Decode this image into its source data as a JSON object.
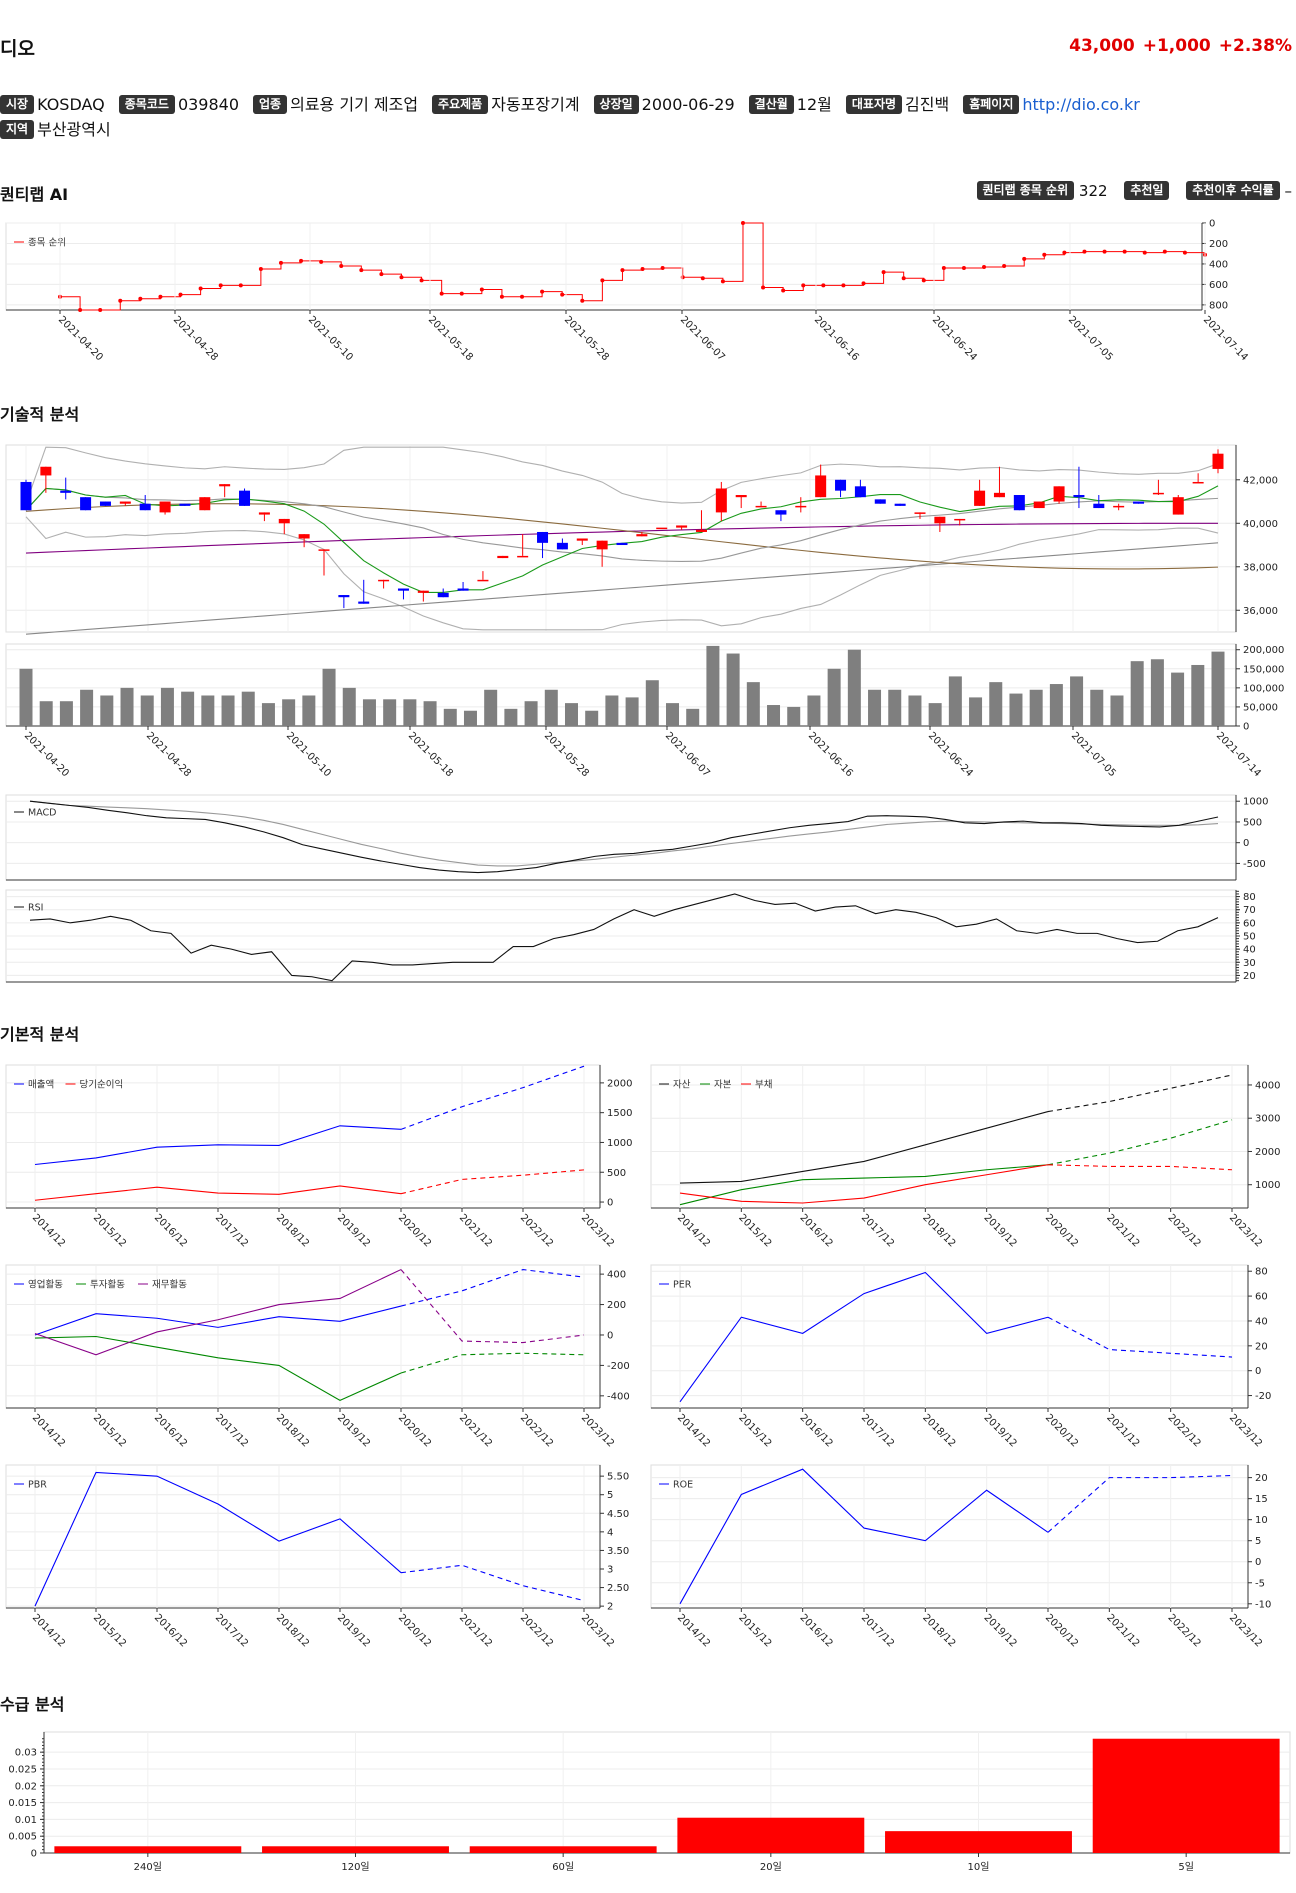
{
  "stock": {
    "name": "디오",
    "price": "43,000",
    "change": "+1,000",
    "change_pct": "+2.38%"
  },
  "info": [
    {
      "label": "시장",
      "value": "KOSDAQ"
    },
    {
      "label": "종목코드",
      "value": "039840"
    },
    {
      "label": "업종",
      "value": "의료용 기기 제조업"
    },
    {
      "label": "주요제품",
      "value": "자동포장기계"
    },
    {
      "label": "상장일",
      "value": "2000-06-29"
    },
    {
      "label": "결산월",
      "value": "12월"
    },
    {
      "label": "대표자명",
      "value": "김진백"
    },
    {
      "label": "홈페이지",
      "value": "http://dio.co.kr",
      "link": true
    },
    {
      "label": "지역",
      "value": "부산광역시"
    }
  ],
  "sections": {
    "quant": "퀀티랩 AI",
    "technical": "기술적 분석",
    "fundamental": "기본적 분석",
    "supply": "수급 분석"
  },
  "quant_meta": {
    "rank_label": "퀀티랩 종목 순위",
    "rank_value": "322",
    "rec_date_label": "추천일",
    "rec_date_value": "",
    "return_label": "추천이후 수익률",
    "return_value": "–"
  },
  "colors": {
    "up": "#ff0000",
    "down": "#0000ff",
    "price_up": "#e00000"
  },
  "chart_data": [
    {
      "id": "rank",
      "type": "line",
      "legend": [
        "종목 순위"
      ],
      "x_ticks": [
        "2021-04-20",
        "2021-04-28",
        "2021-05-10",
        "2021-05-18",
        "2021-05-28",
        "2021-06-07",
        "2021-06-16",
        "2021-06-24",
        "2021-07-05",
        "2021-07-14"
      ],
      "y_ticks": [
        0,
        200,
        400,
        600,
        800
      ],
      "ylim": [
        0,
        850
      ],
      "inverted": true,
      "values": [
        720,
        850,
        850,
        760,
        740,
        720,
        700,
        640,
        610,
        610,
        450,
        390,
        370,
        380,
        420,
        460,
        500,
        530,
        560,
        690,
        690,
        650,
        720,
        720,
        670,
        700,
        760,
        560,
        460,
        450,
        440,
        530,
        540,
        570,
        0,
        630,
        660,
        610,
        610,
        610,
        590,
        480,
        540,
        560,
        440,
        440,
        430,
        420,
        350,
        310,
        290,
        280,
        280,
        280,
        290,
        280,
        290,
        310
      ]
    },
    {
      "id": "price",
      "type": "candlestick",
      "y_ticks": [
        36000,
        38000,
        40000,
        42000
      ],
      "ylim": [
        35000,
        43600
      ],
      "ohlc": [
        [
          41900,
          40600,
          42000,
          40800
        ],
        [
          42200,
          42600,
          41700,
          41400
        ],
        [
          41500,
          41400,
          42100,
          41100
        ],
        [
          41200,
          40600,
          40900,
          41100
        ],
        [
          41000,
          40800,
          40800,
          41000
        ],
        [
          40900,
          41000,
          40500,
          40800
        ],
        [
          40900,
          40600,
          41300,
          40900
        ],
        [
          40500,
          41000,
          40400,
          40400
        ],
        [
          40900,
          40800,
          40700,
          41100
        ],
        [
          40600,
          41200,
          40100,
          41000
        ],
        [
          41700,
          41800,
          41300,
          41200
        ],
        [
          41500,
          40800,
          41600,
          41300
        ],
        [
          40400,
          40500,
          40200,
          40100
        ],
        [
          40000,
          40200,
          39400,
          39500
        ],
        [
          39300,
          39500,
          38900,
          38900
        ],
        [
          38800,
          38800,
          37500,
          37600
        ],
        [
          36700,
          36600,
          36200,
          36100
        ],
        [
          36400,
          36300,
          37400,
          37400
        ],
        [
          37400,
          37400,
          37000,
          37000
        ],
        [
          37000,
          36900,
          36600,
          36500
        ],
        [
          36800,
          36900,
          36600,
          36400
        ],
        [
          36800,
          36600,
          37000,
          37100
        ],
        [
          37000,
          36900,
          37300,
          37200
        ],
        [
          37400,
          37400,
          37800,
          38000
        ],
        [
          38400,
          38500,
          38300,
          38500
        ],
        [
          38500,
          38500,
          39500,
          39700
        ],
        [
          39600,
          39100,
          38800,
          38400
        ],
        [
          39100,
          38800,
          39300,
          39300
        ],
        [
          39200,
          39300,
          38900,
          39000
        ],
        [
          38800,
          39200,
          38800,
          38000
        ],
        [
          39100,
          39000,
          38900,
          39200
        ],
        [
          39400,
          39500,
          39600,
          39500
        ],
        [
          39800,
          39800,
          39800,
          39800
        ],
        [
          39800,
          39900,
          39700,
          39700
        ],
        [
          39600,
          39700,
          40600,
          39600
        ],
        [
          40500,
          41600,
          41900,
          40100
        ],
        [
          41200,
          41300,
          41300,
          40700
        ],
        [
          40800,
          40800,
          41000,
          40800
        ],
        [
          40600,
          40400,
          40400,
          40100
        ],
        [
          40800,
          40800,
          41200,
          40500
        ],
        [
          41200,
          42200,
          42700,
          41400
        ],
        [
          42000,
          41500,
          41700,
          41200
        ],
        [
          41700,
          41200,
          42000,
          41200
        ],
        [
          41100,
          40900,
          40800,
          40900
        ],
        [
          40900,
          40800,
          40700,
          40900
        ],
        [
          40500,
          40500,
          40200,
          40200
        ],
        [
          40000,
          40300,
          39700,
          39600
        ],
        [
          40200,
          40200,
          39900,
          39900
        ],
        [
          40800,
          41500,
          42000,
          41300
        ],
        [
          41200,
          41400,
          42600,
          41500
        ],
        [
          41300,
          40600,
          41100,
          40600
        ],
        [
          40700,
          41000,
          41000,
          40900
        ],
        [
          41000,
          41700,
          41100,
          40900
        ],
        [
          41300,
          41200,
          42600,
          40700
        ],
        [
          40900,
          40700,
          41300,
          40800
        ],
        [
          40800,
          40800,
          40900,
          40600
        ],
        [
          41000,
          40900,
          40900,
          41000
        ],
        [
          41400,
          41400,
          42000,
          41300
        ],
        [
          40400,
          41200,
          41300,
          41200
        ],
        [
          41900,
          41900,
          42300,
          41900
        ],
        [
          42500,
          43200,
          43400,
          42300
        ]
      ],
      "ma_lines": [
        "MA5",
        "MA20",
        "MA60",
        "MA120",
        "BB-upper",
        "BB-lower"
      ]
    },
    {
      "id": "volume",
      "type": "bar",
      "y_ticks": [
        0,
        50000,
        100000,
        150000,
        200000
      ],
      "ylim": [
        0,
        215000
      ],
      "x_ticks": [
        "2021-04-20",
        "2021-04-28",
        "2021-05-10",
        "2021-05-18",
        "2021-05-28",
        "2021-06-07",
        "2021-06-16",
        "2021-06-24",
        "2021-07-05",
        "2021-07-14"
      ],
      "values": [
        150000,
        65000,
        65000,
        95000,
        80000,
        100000,
        80000,
        100000,
        90000,
        80000,
        80000,
        90000,
        60000,
        70000,
        80000,
        150000,
        100000,
        70000,
        70000,
        70000,
        65000,
        45000,
        40000,
        95000,
        45000,
        65000,
        95000,
        60000,
        40000,
        80000,
        75000,
        120000,
        60000,
        45000,
        210000,
        190000,
        115000,
        55000,
        50000,
        80000,
        150000,
        200000,
        95000,
        95000,
        80000,
        60000,
        130000,
        75000,
        115000,
        85000,
        95000,
        110000,
        130000,
        95000,
        80000,
        170000,
        175000,
        140000,
        160000,
        195000
      ]
    },
    {
      "id": "macd",
      "type": "line",
      "legend": [
        "MACD"
      ],
      "y_ticks": [
        -500,
        0,
        500,
        1000
      ],
      "ylim": [
        -900,
        1150
      ],
      "values": [
        1000,
        950,
        900,
        850,
        780,
        720,
        650,
        600,
        580,
        560,
        480,
        380,
        260,
        120,
        -50,
        -150,
        -250,
        -350,
        -440,
        -520,
        -600,
        -660,
        -700,
        -720,
        -700,
        -650,
        -600,
        -500,
        -420,
        -330,
        -280,
        -260,
        -200,
        -160,
        -80,
        0,
        120,
        200,
        280,
        360,
        420,
        460,
        510,
        640,
        650,
        640,
        620,
        560,
        480,
        460,
        500,
        520,
        480,
        480,
        460,
        420,
        400,
        390,
        380,
        420,
        520,
        620
      ],
      "signal": [
        1000,
        950,
        900,
        880,
        860,
        840,
        820,
        790,
        760,
        720,
        680,
        620,
        540,
        440,
        320,
        200,
        80,
        -40,
        -140,
        -250,
        -340,
        -420,
        -480,
        -540,
        -560,
        -560,
        -520,
        -480,
        -440,
        -400,
        -350,
        -300,
        -260,
        -200,
        -150,
        -80,
        -20,
        40,
        100,
        160,
        210,
        260,
        320,
        380,
        440,
        470,
        500,
        520,
        510,
        500,
        490,
        480,
        470,
        460,
        450,
        440,
        430,
        420,
        420,
        420,
        430,
        460
      ]
    },
    {
      "id": "rsi",
      "type": "line",
      "legend": [
        "RSI"
      ],
      "y_ticks": [
        20,
        30,
        40,
        50,
        60,
        70,
        80
      ],
      "ylim": [
        15,
        85
      ],
      "values": [
        62,
        63,
        60,
        62,
        65,
        62,
        54,
        52,
        37,
        43,
        40,
        36,
        38,
        20,
        19,
        16,
        31,
        30,
        28,
        28,
        29,
        30,
        30,
        30,
        42,
        42,
        48,
        51,
        55,
        63,
        70,
        65,
        70,
        74,
        78,
        82,
        77,
        74,
        75,
        69,
        72,
        73,
        67,
        70,
        68,
        64,
        57,
        59,
        63,
        54,
        52,
        55,
        52,
        52,
        48,
        45,
        46,
        54,
        57,
        64
      ]
    },
    {
      "id": "sales_income",
      "type": "line",
      "legend": [
        "매출액",
        "당기순이익"
      ],
      "colors": [
        "#0000ff",
        "#ff0000"
      ],
      "x_ticks": [
        "2014/12",
        "2015/12",
        "2016/12",
        "2017/12",
        "2018/12",
        "2019/12",
        "2020/12",
        "2021/12",
        "2022/12",
        "2023/12"
      ],
      "y_ticks": [
        0,
        500,
        1000,
        1500,
        2000
      ],
      "ylim": [
        -100,
        2300
      ],
      "forecast_from": 6,
      "series": [
        {
          "name": "매출액",
          "values": [
            630,
            740,
            920,
            960,
            950,
            1280,
            1220,
            1600,
            1920,
            2280
          ]
        },
        {
          "name": "당기순이익",
          "values": [
            30,
            140,
            250,
            150,
            130,
            270,
            140,
            380,
            450,
            540
          ]
        }
      ]
    },
    {
      "id": "balance",
      "type": "line",
      "legend": [
        "자산",
        "자본",
        "부채"
      ],
      "colors": [
        "#111111",
        "#008800",
        "#ff0000"
      ],
      "x_ticks": [
        "2014/12",
        "2015/12",
        "2016/12",
        "2017/12",
        "2018/12",
        "2019/12",
        "2020/12",
        "2021/12",
        "2022/12",
        "2023/12"
      ],
      "y_ticks": [
        1000,
        2000,
        3000,
        4000
      ],
      "ylim": [
        300,
        4600
      ],
      "forecast_from": 6,
      "series": [
        {
          "name": "자산",
          "values": [
            1050,
            1100,
            1400,
            1700,
            2200,
            2700,
            3200,
            3500,
            3900,
            4300
          ]
        },
        {
          "name": "자본",
          "values": [
            400,
            850,
            1150,
            1200,
            1250,
            1450,
            1600,
            1950,
            2400,
            2950
          ]
        },
        {
          "name": "부채",
          "values": [
            750,
            500,
            450,
            600,
            1000,
            1300,
            1600,
            1550,
            1550,
            1450
          ]
        }
      ]
    },
    {
      "id": "cashflow",
      "type": "line",
      "legend": [
        "영업활동",
        "투자활동",
        "재무활동"
      ],
      "colors": [
        "#0000ff",
        "#008800",
        "#880088"
      ],
      "x_ticks": [
        "2014/12",
        "2015/12",
        "2016/12",
        "2017/12",
        "2018/12",
        "2019/12",
        "2020/12",
        "2021/12",
        "2022/12",
        "2023/12"
      ],
      "y_ticks": [
        -400,
        -200,
        0,
        200,
        400
      ],
      "ylim": [
        -480,
        460
      ],
      "forecast_from": 6,
      "series": [
        {
          "name": "영업활동",
          "values": [
            0,
            140,
            110,
            50,
            120,
            90,
            190,
            290,
            430,
            380
          ]
        },
        {
          "name": "투자활동",
          "values": [
            -20,
            -10,
            -80,
            -150,
            -200,
            -430,
            -250,
            -130,
            -120,
            -130
          ]
        },
        {
          "name": "재무활동",
          "values": [
            10,
            -130,
            20,
            100,
            200,
            240,
            430,
            -40,
            -50,
            0
          ]
        }
      ]
    },
    {
      "id": "per",
      "type": "line",
      "legend": [
        "PER"
      ],
      "colors": [
        "#0000ff"
      ],
      "x_ticks": [
        "2014/12",
        "2015/12",
        "2016/12",
        "2017/12",
        "2018/12",
        "2019/12",
        "2020/12",
        "2021/12",
        "2022/12",
        "2023/12"
      ],
      "y_ticks": [
        -20,
        0,
        20,
        40,
        60,
        80
      ],
      "ylim": [
        -30,
        85
      ],
      "forecast_from": 6,
      "series": [
        {
          "name": "PER",
          "values": [
            -25,
            43,
            30,
            62,
            79,
            30,
            43,
            17,
            14,
            11
          ]
        }
      ]
    },
    {
      "id": "pbr",
      "type": "line",
      "legend": [
        "PBR"
      ],
      "colors": [
        "#0000ff"
      ],
      "x_ticks": [
        "2014/12",
        "2015/12",
        "2016/12",
        "2017/12",
        "2018/12",
        "2019/12",
        "2020/12",
        "2021/12",
        "2022/12",
        "2023/12"
      ],
      "y_ticks": [
        2,
        2.5,
        3,
        3.5,
        4,
        4.5,
        5,
        5.5
      ],
      "y_tick_labels": [
        "2",
        "2.50",
        "3",
        "3.50",
        "4",
        "4.50",
        "5",
        "5.50"
      ],
      "ylim": [
        1.95,
        5.8
      ],
      "forecast_from": 6,
      "series": [
        {
          "name": "PBR",
          "values": [
            2.0,
            5.6,
            5.5,
            4.75,
            3.75,
            4.35,
            2.9,
            3.1,
            2.55,
            2.15
          ]
        }
      ]
    },
    {
      "id": "roe",
      "type": "line",
      "legend": [
        "ROE"
      ],
      "colors": [
        "#0000ff"
      ],
      "x_ticks": [
        "2014/12",
        "2015/12",
        "2016/12",
        "2017/12",
        "2018/12",
        "2019/12",
        "2020/12",
        "2021/12",
        "2022/12",
        "2023/12"
      ],
      "y_ticks": [
        -10,
        -5,
        0,
        5,
        10,
        15,
        20
      ],
      "ylim": [
        -11,
        23
      ],
      "forecast_from": 6,
      "series": [
        {
          "name": "ROE",
          "values": [
            -10,
            16,
            22,
            8,
            5,
            17,
            7,
            20,
            20,
            20.5
          ]
        }
      ]
    },
    {
      "id": "supply",
      "type": "bar",
      "categories": [
        "240일",
        "120일",
        "60일",
        "20일",
        "10일",
        "5일"
      ],
      "values": [
        0.002,
        0.002,
        0.002,
        0.0105,
        0.0065,
        0.034
      ],
      "y_ticks": [
        0,
        0.005,
        0.01,
        0.015,
        0.02,
        0.025,
        0.03
      ],
      "ylim": [
        0,
        0.036
      ]
    }
  ]
}
